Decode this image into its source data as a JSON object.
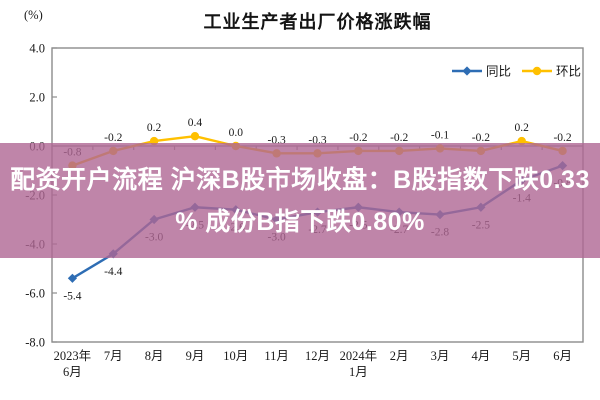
{
  "chart_data": {
    "type": "line",
    "title": "工业生产者出厂价格涨跌幅",
    "unit_label": "(%)",
    "categories": [
      "2023年\n6月",
      "7月",
      "8月",
      "9月",
      "10月",
      "11月",
      "12月",
      "2024年\n1月",
      "2月",
      "3月",
      "4月",
      "5月",
      "6月"
    ],
    "series": [
      {
        "name": "同比",
        "color": "#2E6DB4",
        "marker": "diamond",
        "label_position": "below",
        "values": [
          -5.4,
          -4.4,
          -3.0,
          -2.5,
          -2.6,
          -3.0,
          -2.7,
          -2.5,
          -2.7,
          -2.8,
          -2.5,
          -1.4,
          -0.8
        ]
      },
      {
        "name": "环比",
        "color": "#FFC000",
        "marker": "circle",
        "label_position": "above",
        "values": [
          -0.8,
          -0.2,
          0.2,
          0.4,
          0.0,
          -0.3,
          -0.3,
          -0.2,
          -0.2,
          -0.1,
          -0.2,
          0.2,
          -0.2
        ]
      }
    ],
    "ylim": [
      -8.0,
      4.0
    ],
    "ytick_step": 2.0,
    "grid": false,
    "legend_position": "top-right",
    "axis_color": "#8C8C8C",
    "label_color": "#1A1A1A"
  },
  "overlay": {
    "line1": "配资开户流程 沪深B股市场收盘：B股指数下跌0.33",
    "line2": "% 成份B指下跌0.80%",
    "background": "rgba(175,103,148,0.80)",
    "text_color": "#FFFFFF"
  }
}
